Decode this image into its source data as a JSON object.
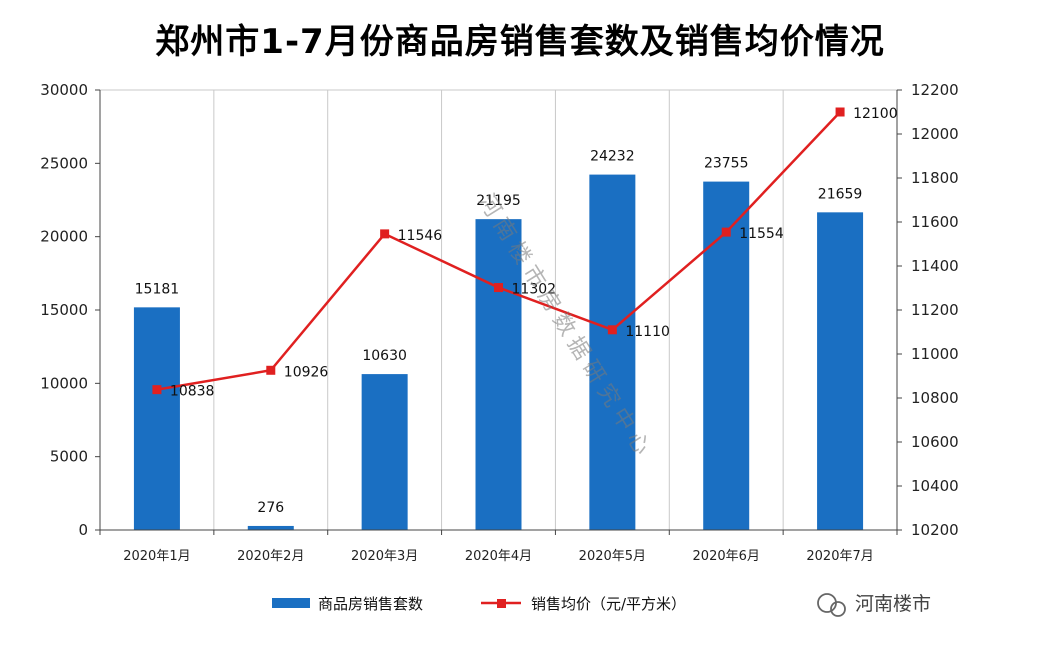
{
  "chart_data": {
    "type": "bar",
    "title": "郑州市1-7月份商品房销售套数及销售均价情况",
    "categories": [
      "2020年1月",
      "2020年2月",
      "2020年3月",
      "2020年4月",
      "2020年5月",
      "2020年6月",
      "2020年7月"
    ],
    "series": [
      {
        "name": "商品房销售套数",
        "type": "bar",
        "axis": "left",
        "color": "#1a6fc2",
        "values": [
          15181,
          276,
          10630,
          21195,
          24232,
          23755,
          21659
        ]
      },
      {
        "name": "销售均价（元/平方米）",
        "type": "line",
        "axis": "right",
        "color": "#e02020",
        "values": [
          10838,
          10926,
          11546,
          11302,
          11110,
          11554,
          12100
        ]
      }
    ],
    "y_left": {
      "min": 0,
      "max": 30000,
      "step": 5000
    },
    "y_right": {
      "min": 10200,
      "max": 12200,
      "step": 200
    },
    "grid": "vertical",
    "legend": "bottom"
  },
  "watermark": "河南楼市房数据研究中心",
  "brand": "河南楼市"
}
